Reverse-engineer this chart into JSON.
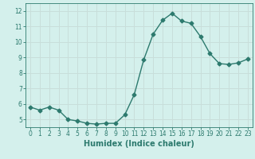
{
  "x": [
    0,
    1,
    2,
    3,
    4,
    5,
    6,
    7,
    8,
    9,
    10,
    11,
    12,
    13,
    14,
    15,
    16,
    17,
    18,
    19,
    20,
    21,
    22,
    23
  ],
  "y": [
    5.8,
    5.6,
    5.8,
    5.6,
    5.0,
    4.9,
    4.75,
    4.7,
    4.75,
    4.75,
    5.3,
    6.6,
    8.85,
    10.5,
    11.4,
    11.85,
    11.35,
    11.2,
    10.35,
    9.25,
    8.6,
    8.55,
    8.65,
    8.9
  ],
  "line_color": "#2d7a6e",
  "marker": "D",
  "markersize": 2.5,
  "linewidth": 1.0,
  "xlabel": "Humidex (Indice chaleur)",
  "xlabel_fontsize": 7,
  "bg_color": "#d4f0ec",
  "grid_color": "#c8deda",
  "tick_color": "#2d7a6e",
  "axes_color": "#2d7a6e",
  "ylim": [
    4.5,
    12.5
  ],
  "xlim": [
    -0.5,
    23.5
  ],
  "yticks": [
    5,
    6,
    7,
    8,
    9,
    10,
    11,
    12
  ],
  "xticks": [
    0,
    1,
    2,
    3,
    4,
    5,
    6,
    7,
    8,
    9,
    10,
    11,
    12,
    13,
    14,
    15,
    16,
    17,
    18,
    19,
    20,
    21,
    22,
    23
  ]
}
